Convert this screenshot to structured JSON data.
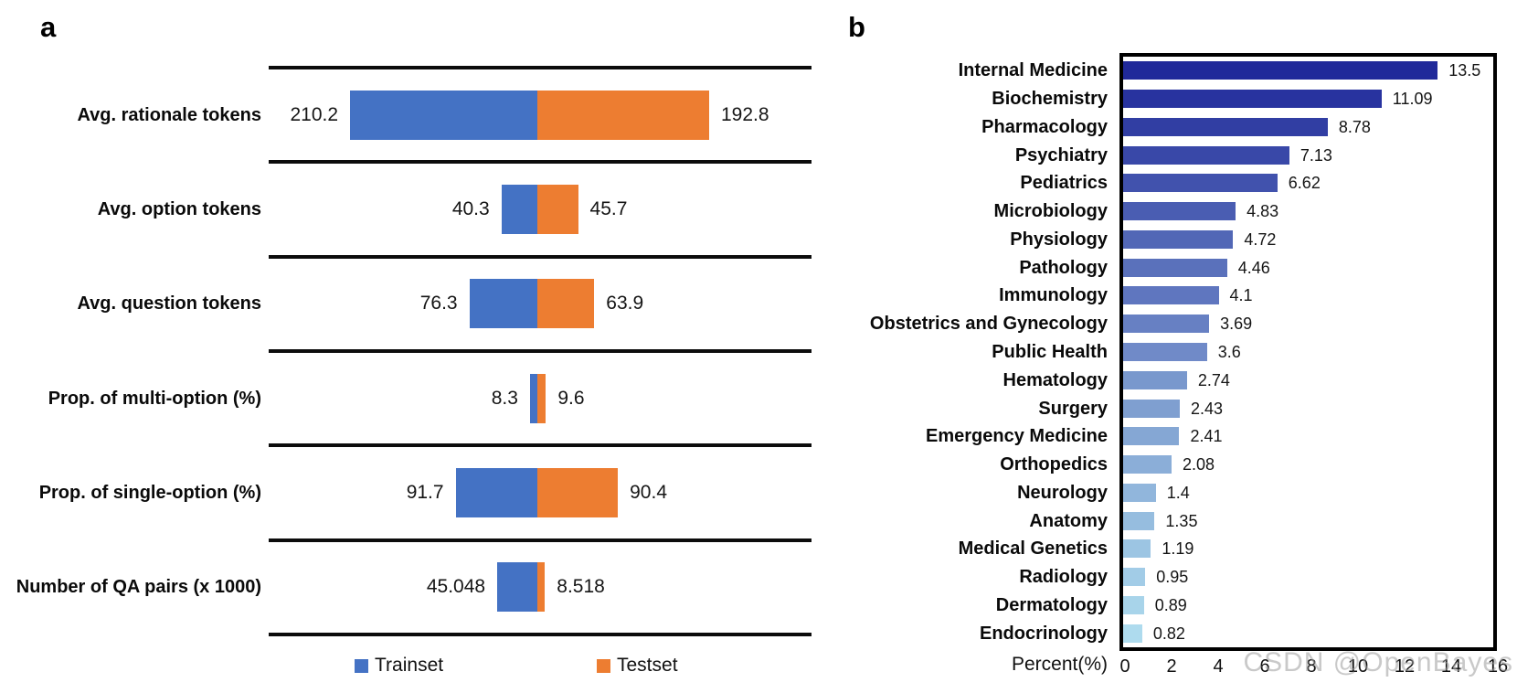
{
  "panels": {
    "a": {
      "label": "a"
    },
    "b": {
      "label": "b"
    }
  },
  "watermark": "CSDN @OpenBayes",
  "chart_data": [
    {
      "type": "bar",
      "panel": "a",
      "orientation": "horizontal-diverging",
      "description": "Dataset statistics; Trainset bars extend left and Testset bars extend right from a shared center axis; rows separated by horizontal black rules",
      "categories": [
        "Avg. rationale tokens",
        "Avg. option tokens",
        "Avg. question tokens",
        "Prop. of multi-option (%)",
        "Prop. of single-option (%)",
        "Number of QA pairs (x 1000)"
      ],
      "series": [
        {
          "name": "Trainset",
          "color": "#4472C4",
          "side": "left",
          "values": [
            210.2,
            40.3,
            76.3,
            8.3,
            91.7,
            45.048
          ],
          "value_labels": [
            "210.2",
            "40.3",
            "76.3",
            "8.3",
            "91.7",
            "45.048"
          ]
        },
        {
          "name": "Testset",
          "color": "#ED7D31",
          "side": "right",
          "values": [
            192.8,
            45.7,
            63.9,
            9.6,
            90.4,
            8.518
          ],
          "value_labels": [
            "192.8",
            "45.7",
            "63.9",
            "9.6",
            "90.4",
            "8.518"
          ]
        }
      ],
      "legend_position": "bottom",
      "gridlines": "row separators only"
    },
    {
      "type": "bar",
      "panel": "b",
      "orientation": "horizontal",
      "categories": [
        "Internal Medicine",
        "Biochemistry",
        "Pharmacology",
        "Psychiatry",
        "Pediatrics",
        "Microbiology",
        "Physiology",
        "Pathology",
        "Immunology",
        "Obstetrics and Gynecology",
        "Public Health",
        "Hematology",
        "Surgery",
        "Emergency Medicine",
        "Orthopedics",
        "Neurology",
        "Anatomy",
        "Medical Genetics",
        "Radiology",
        "Dermatology",
        "Endocrinology"
      ],
      "values": [
        13.5,
        11.09,
        8.78,
        7.13,
        6.62,
        4.83,
        4.72,
        4.46,
        4.1,
        3.69,
        3.6,
        2.74,
        2.43,
        2.41,
        2.08,
        1.4,
        1.35,
        1.19,
        0.95,
        0.89,
        0.82
      ],
      "value_labels": [
        "13.5",
        "11.09",
        "8.78",
        "7.13",
        "6.62",
        "4.83",
        "4.72",
        "4.46",
        "4.1",
        "3.69",
        "3.6",
        "2.74",
        "2.43",
        "2.41",
        "2.08",
        "1.4",
        "1.35",
        "1.19",
        "0.95",
        "0.89",
        "0.82"
      ],
      "bar_colors": [
        "#20299A",
        "#28339F",
        "#313EA3",
        "#3948A8",
        "#4152AD",
        "#4A5DB2",
        "#5267B6",
        "#5A71BB",
        "#5F76BF",
        "#6780C3",
        "#708AC8",
        "#7998CD",
        "#7F9FD0",
        "#85A7D4",
        "#8BAED8",
        "#91B6DC",
        "#96BDDF",
        "#9CC5E3",
        "#A2CCE7",
        "#A8D4EA",
        "#AEDBEE"
      ],
      "xlabel": "Percent(%)",
      "xticks": [
        "0",
        "2",
        "4",
        "6",
        "8",
        "10",
        "12",
        "14",
        "16"
      ],
      "xlim": [
        0,
        16
      ],
      "gridlines": "off",
      "legend": "none",
      "plot_border": "thick black box"
    }
  ]
}
